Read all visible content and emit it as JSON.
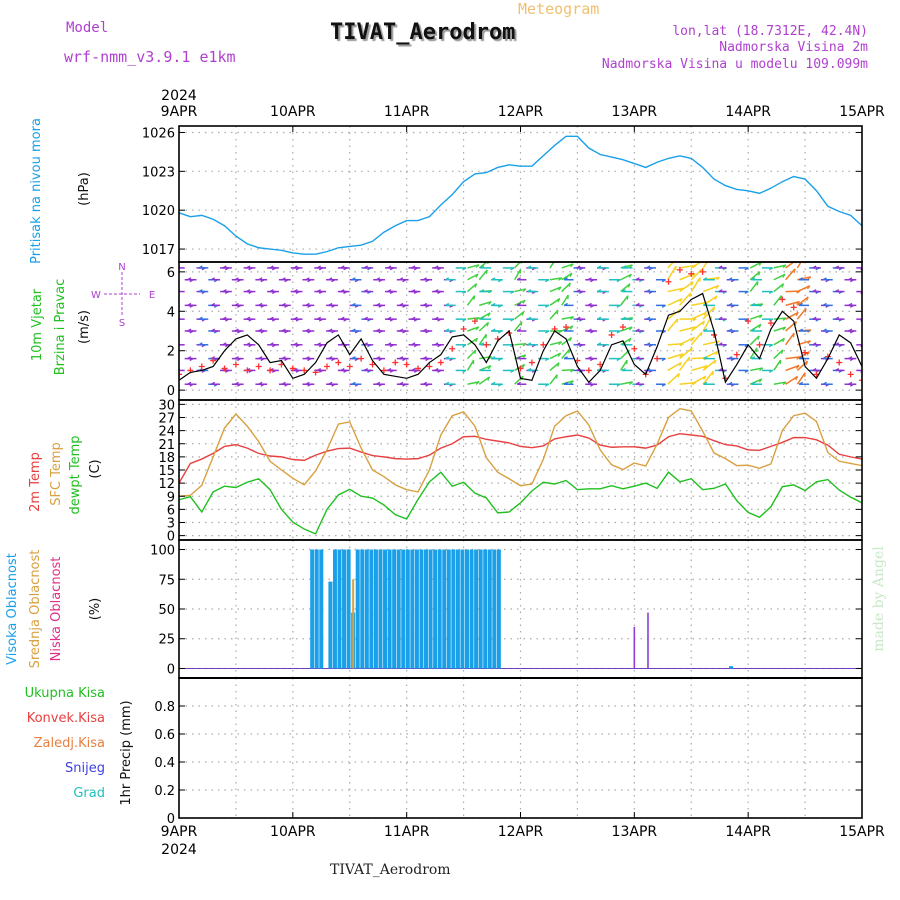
{
  "header": {
    "model_label": "Model",
    "model_name": "wrf-nmm_v3.9.1 e1km",
    "title": "TIVAT_Aerodrom",
    "meteogram": "Meteogram",
    "lonlat": "lon,lat (18.7312E, 42.4N)",
    "altitude": "Nadmorska Visina 2m",
    "model_altitude": "Nadmorska Visina u modelu 109.099m",
    "bottom_title": "TIVAT_Aerodrom",
    "watermark": "made by Angel"
  },
  "colors": {
    "pressure": "#1aa0e8",
    "wind_speed": "#000000",
    "gust": "#ff3030",
    "temp2m": "#e84040",
    "sfc_temp": "#d8a040",
    "dewpt": "#20c020",
    "high_cloud": "#1aa0e8",
    "mid_cloud": "#d8a040",
    "low_cloud": "#e0308a",
    "purple": "#b040d0",
    "watermark": "#c8e8c8"
  },
  "chart_data": [
    {
      "type": "line",
      "panel": "pressure",
      "title": "",
      "ylabel": "Pritisak na nivou mora (hPa)",
      "ylabel_parts": [
        "Pritisak na nivou mora",
        "(hPa)"
      ],
      "ylim": [
        1016,
        1026.5
      ],
      "yticks": [
        1017,
        1020,
        1023,
        1026
      ],
      "x_days": [
        0,
        0.1,
        0.2,
        0.3,
        0.4,
        0.5,
        0.6,
        0.7,
        0.8,
        0.9,
        1.0,
        1.1,
        1.2,
        1.3,
        1.4,
        1.5,
        1.6,
        1.7,
        1.8,
        1.9,
        2.0,
        2.1,
        2.2,
        2.3,
        2.4,
        2.5,
        2.6,
        2.7,
        2.8,
        2.9,
        3.0,
        3.1,
        3.2,
        3.3,
        3.4,
        3.5,
        3.6,
        3.7,
        3.8,
        3.9,
        4.0,
        4.1,
        4.2,
        4.3,
        4.4,
        4.5,
        4.6,
        4.7,
        4.8,
        4.9,
        5.0,
        5.1,
        5.2,
        5.3,
        5.4,
        5.5,
        5.6,
        5.7,
        5.8,
        5.9,
        6.0
      ],
      "series": [
        {
          "values": [
            1019.8,
            1019.5,
            1019.6,
            1019.3,
            1018.8,
            1018.0,
            1017.4,
            1017.1,
            1017.0,
            1016.9,
            1016.7,
            1016.6,
            1016.6,
            1016.8,
            1017.1,
            1017.2,
            1017.3,
            1017.6,
            1018.3,
            1018.8,
            1019.2,
            1019.2,
            1019.5,
            1020.4,
            1021.2,
            1022.2,
            1022.8,
            1022.9,
            1023.3,
            1023.5,
            1023.4,
            1023.4,
            1024.2,
            1025.0,
            1025.7,
            1025.7,
            1024.8,
            1024.3,
            1024.1,
            1023.9,
            1023.6,
            1023.3,
            1023.7,
            1024.0,
            1024.2,
            1024.0,
            1023.3,
            1022.4,
            1021.9,
            1021.6,
            1021.5,
            1021.3,
            1021.7,
            1022.2,
            1022.6,
            1022.4,
            1021.5,
            1020.3,
            1019.9,
            1019.6,
            1018.8
          ]
        }
      ]
    },
    {
      "type": "line",
      "panel": "wind",
      "title": "",
      "ylabel": "10m Vjetar Brzina i Pravac (m/s)",
      "ylabel_parts": [
        "10m Vjetar",
        "Brzina i Pravac",
        "(m/s)"
      ],
      "compass": [
        "N",
        "S",
        "W",
        "E"
      ],
      "ylim": [
        -0.5,
        6.5
      ],
      "yticks": [
        0,
        2,
        4,
        6
      ],
      "barb_rows": [
        0.3,
        1.0,
        1.6,
        2.3,
        3.0,
        3.6,
        4.3,
        5.0,
        5.6,
        6.2
      ],
      "x_days": [
        0,
        0.1,
        0.2,
        0.3,
        0.4,
        0.5,
        0.6,
        0.7,
        0.8,
        0.9,
        1.0,
        1.1,
        1.2,
        1.3,
        1.4,
        1.5,
        1.6,
        1.7,
        1.8,
        1.9,
        2.0,
        2.1,
        2.2,
        2.3,
        2.4,
        2.5,
        2.6,
        2.7,
        2.8,
        2.9,
        3.0,
        3.1,
        3.2,
        3.3,
        3.4,
        3.5,
        3.6,
        3.7,
        3.8,
        3.9,
        4.0,
        4.1,
        4.2,
        4.3,
        4.4,
        4.5,
        4.6,
        4.7,
        4.8,
        4.9,
        5.0,
        5.1,
        5.2,
        5.3,
        5.4,
        5.5,
        5.6,
        5.7,
        5.8,
        5.9,
        6.0
      ],
      "series": [
        {
          "name": "",
          "values": [
            0.5,
            0.9,
            1.0,
            1.2,
            2.0,
            2.6,
            2.8,
            2.3,
            1.4,
            1.5,
            0.6,
            0.8,
            1.4,
            2.4,
            2.8,
            1.8,
            2.6,
            1.5,
            0.8,
            0.7,
            0.6,
            0.8,
            1.4,
            1.8,
            2.7,
            2.8,
            2.3,
            1.4,
            2.5,
            3.0,
            0.6,
            0.5,
            2.0,
            3.0,
            2.6,
            1.2,
            0.4,
            1.0,
            2.3,
            2.5,
            1.3,
            0.8,
            2.2,
            3.8,
            4.0,
            4.6,
            4.9,
            3.0,
            0.4,
            1.3,
            2.3,
            1.6,
            3.1,
            4.0,
            3.5,
            1.2,
            0.6,
            1.6,
            2.8,
            2.4,
            1.2
          ]
        },
        {
          "name": "",
          "values": [
            0.8,
            1.0,
            1.2,
            1.5,
            1.1,
            1.3,
            1.0,
            1.2,
            1.0,
            1.3,
            1.1,
            1.0,
            0.9,
            1.2,
            1.4,
            1.2,
            1.6,
            1.3,
            1.0,
            1.4,
            1.3,
            1.1,
            1.2,
            1.4,
            2.1,
            3.1,
            3.5,
            2.3,
            2.6,
            2.9,
            1.1,
            1.4,
            2.3,
            3.1,
            3.2,
            1.5,
            1.0,
            1.3,
            2.8,
            3.2,
            2.1,
            0.8,
            1.6,
            5.5,
            6.1,
            5.9,
            6.0,
            2.8,
            0.6,
            1.8,
            3.5,
            2.3,
            3.4,
            4.6,
            4.2,
            1.9,
            0.8,
            1.7,
            1.4,
            0.8,
            0.5
          ]
        }
      ]
    },
    {
      "type": "line",
      "panel": "temperature",
      "title": "",
      "ylabel": "2m Temp SFC Temp dewpt Temp (C)",
      "ylabel_parts": [
        "2m Temp",
        "SFC Temp",
        "dewpt Temp",
        "(C)"
      ],
      "ylim": [
        -1,
        31
      ],
      "yticks": [
        0,
        3,
        6,
        9,
        12,
        15,
        18,
        21,
        24,
        27,
        30
      ],
      "x_days": [
        0,
        0.1,
        0.2,
        0.3,
        0.4,
        0.5,
        0.6,
        0.7,
        0.8,
        0.9,
        1.0,
        1.1,
        1.2,
        1.3,
        1.4,
        1.5,
        1.6,
        1.7,
        1.8,
        1.9,
        2.0,
        2.1,
        2.2,
        2.3,
        2.4,
        2.5,
        2.6,
        2.7,
        2.8,
        2.9,
        3.0,
        3.1,
        3.2,
        3.3,
        3.4,
        3.5,
        3.6,
        3.7,
        3.8,
        3.9,
        4.0,
        4.1,
        4.2,
        4.3,
        4.4,
        4.5,
        4.6,
        4.7,
        4.8,
        4.9,
        5.0,
        5.1,
        5.2,
        5.3,
        5.4,
        5.5,
        5.6,
        5.7,
        5.8,
        5.9,
        6.0
      ],
      "series": [
        {
          "name": "2m Temp",
          "values": [
            12.0,
            16.5,
            17.5,
            18.8,
            20.4,
            20.8,
            20.0,
            18.8,
            18.2,
            18.0,
            17.4,
            17.2,
            18.4,
            19.3,
            19.9,
            20.0,
            19.1,
            18.3,
            18.0,
            17.6,
            17.5,
            17.6,
            18.4,
            20.0,
            21.0,
            22.6,
            22.7,
            22.0,
            21.6,
            21.2,
            20.4,
            20.1,
            20.5,
            22.1,
            22.6,
            23.0,
            22.3,
            20.7,
            20.2,
            20.3,
            20.3,
            20.0,
            20.7,
            22.6,
            23.3,
            23.0,
            22.7,
            21.7,
            20.8,
            20.5,
            19.6,
            19.5,
            20.4,
            21.3,
            22.4,
            22.4,
            21.9,
            20.7,
            18.6,
            18.0,
            17.5
          ]
        },
        {
          "name": "SFC Temp",
          "values": [
            9.0,
            9.2,
            11.5,
            18.0,
            24.6,
            27.8,
            25.0,
            21.5,
            17.0,
            15.0,
            13.1,
            11.6,
            14.8,
            19.6,
            25.5,
            26.0,
            20.0,
            15.0,
            13.5,
            11.6,
            10.5,
            10.0,
            15.0,
            23.0,
            27.4,
            28.3,
            25.0,
            17.8,
            14.5,
            13.0,
            11.4,
            11.8,
            17.4,
            25.0,
            27.4,
            28.5,
            25.3,
            19.6,
            16.2,
            15.1,
            16.6,
            15.9,
            20.9,
            27.0,
            29.0,
            28.5,
            23.9,
            18.9,
            17.6,
            16.0,
            16.1,
            15.4,
            16.4,
            24.0,
            27.4,
            28.0,
            26.1,
            19.0,
            17.0,
            16.5,
            16.0
          ]
        },
        {
          "name": "dewpt Temp",
          "values": [
            8.2,
            8.9,
            5.4,
            10.0,
            11.3,
            11.0,
            12.2,
            13.0,
            10.5,
            6.0,
            3.1,
            1.5,
            0.4,
            6.0,
            9.3,
            10.6,
            9.0,
            8.6,
            7.0,
            4.8,
            3.8,
            8.3,
            12.3,
            14.5,
            11.3,
            12.2,
            9.7,
            8.6,
            5.2,
            5.4,
            7.5,
            10.2,
            12.2,
            11.8,
            12.6,
            10.5,
            10.7,
            10.7,
            11.4,
            10.7,
            11.3,
            12.0,
            10.8,
            14.5,
            12.3,
            13.0,
            10.5,
            10.8,
            11.8,
            8.0,
            5.3,
            4.2,
            6.6,
            11.2,
            11.6,
            10.3,
            12.3,
            12.8,
            10.4,
            8.8,
            7.5
          ]
        }
      ]
    },
    {
      "type": "bar",
      "panel": "clouds",
      "title": "",
      "ylabel": "Visoka Oblacnost Srednja Oblacnost Niska Oblacnost (%)",
      "ylabel_parts": [
        "Visoka Oblacnost",
        "Srednja Oblacnost",
        "Niska Oblacnost",
        "(%)"
      ],
      "ylim": [
        -8,
        108
      ],
      "yticks": [
        0,
        25,
        50,
        75,
        100
      ],
      "series": [
        {
          "name": "Visoka Oblacnost",
          "x_days": [
            1.17,
            1.21,
            1.25,
            1.33,
            1.37,
            1.41,
            1.45,
            1.49,
            1.53,
            1.57,
            1.61,
            1.65,
            1.69,
            1.73,
            1.77,
            1.81,
            1.85,
            1.89,
            1.93,
            1.97,
            2.01,
            2.05,
            2.09,
            2.13,
            2.17,
            2.21,
            2.25,
            2.29,
            2.33,
            2.37,
            2.41,
            2.45,
            2.49,
            2.53,
            2.57,
            2.61,
            2.65,
            2.69,
            2.73,
            2.77,
            2.81,
            4.85
          ],
          "values": [
            100,
            100,
            100,
            73,
            100,
            100,
            100,
            100,
            47,
            100,
            100,
            100,
            100,
            100,
            100,
            100,
            100,
            100,
            100,
            100,
            100,
            100,
            100,
            100,
            100,
            100,
            100,
            100,
            100,
            100,
            100,
            100,
            100,
            100,
            100,
            100,
            100,
            100,
            100,
            100,
            100,
            2
          ]
        },
        {
          "name": "Srednja Oblacnost",
          "x_days": [
            1.53
          ],
          "values": [
            75
          ]
        },
        {
          "name": "Niska Oblacnost",
          "x_days": [
            4.0,
            4.12
          ],
          "values": [
            35,
            47
          ]
        }
      ]
    },
    {
      "type": "line",
      "panel": "precip",
      "title": "",
      "ylabel": "1hr Precip (mm)",
      "ylim": [
        0,
        1.0
      ],
      "yticks": [
        0,
        0.2,
        0.4,
        0.6,
        0.8
      ],
      "legend": [
        "Ukupna Kisa",
        "Konvek.Kisa",
        "Zaledj.Kisa",
        "Snijeg",
        "Grad"
      ],
      "legend_colors": [
        "#20c020",
        "#e84040",
        "#e88040",
        "#4040e0",
        "#20c0c0"
      ],
      "x_days": [
        0,
        6
      ],
      "series": [
        {
          "name": "Ukupna Kisa",
          "values": [
            0,
            0
          ]
        }
      ]
    }
  ],
  "time_axis": {
    "year": "2024",
    "labels": [
      "9APR",
      "10APR",
      "11APR",
      "12APR",
      "13APR",
      "14APR",
      "15APR"
    ]
  }
}
